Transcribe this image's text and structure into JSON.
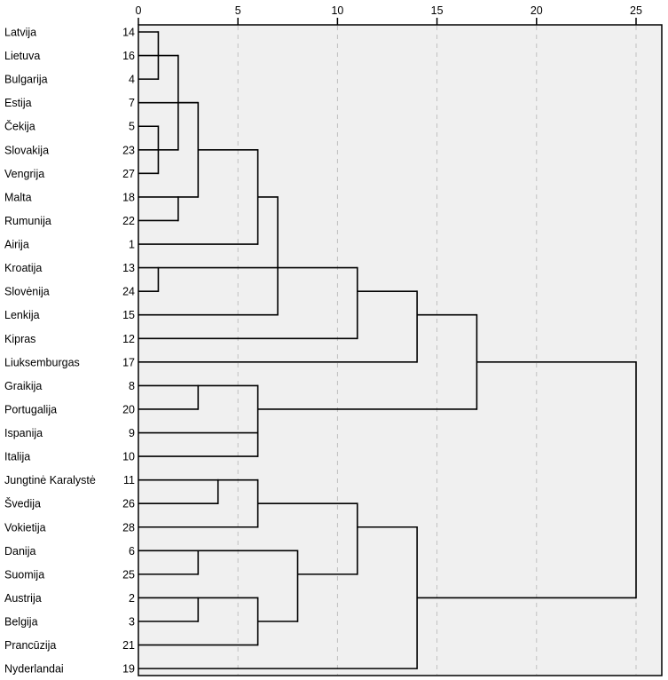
{
  "chart_data": {
    "type": "dendrogram",
    "title": "",
    "xlabel": "",
    "ylabel": "",
    "xlim": [
      0,
      25
    ],
    "xticks": [
      0,
      5,
      10,
      15,
      20,
      25
    ],
    "grid": true,
    "plot_background": "#f0f0f0",
    "line_color": "#000000",
    "leaves": [
      {
        "label": "Latvija",
        "case": "14"
      },
      {
        "label": "Lietuva",
        "case": "16"
      },
      {
        "label": "Bulgarija",
        "case": "4"
      },
      {
        "label": "Estija",
        "case": "7"
      },
      {
        "label": "Čekija",
        "case": "5"
      },
      {
        "label": "Slovakija",
        "case": "23"
      },
      {
        "label": "Vengrija",
        "case": "27"
      },
      {
        "label": "Malta",
        "case": "18"
      },
      {
        "label": "Rumunija",
        "case": "22"
      },
      {
        "label": "Airija",
        "case": "1"
      },
      {
        "label": "Kroatija",
        "case": "13"
      },
      {
        "label": "Slovėnija",
        "case": "24"
      },
      {
        "label": "Lenkija",
        "case": "15"
      },
      {
        "label": "Kipras",
        "case": "12"
      },
      {
        "label": "Liuksemburgas",
        "case": "17"
      },
      {
        "label": "Graikija",
        "case": "8"
      },
      {
        "label": "Portugalija",
        "case": "20"
      },
      {
        "label": "Ispanija",
        "case": "9"
      },
      {
        "label": "Italija",
        "case": "10"
      },
      {
        "label": "Jungtinė Karalystė",
        "case": "11"
      },
      {
        "label": "Švedija",
        "case": "26"
      },
      {
        "label": "Vokietija",
        "case": "28"
      },
      {
        "label": "Danija",
        "case": "6"
      },
      {
        "label": "Suomija",
        "case": "25"
      },
      {
        "label": "Austrija",
        "case": "2"
      },
      {
        "label": "Belgija",
        "case": "3"
      },
      {
        "label": "Prancūzija",
        "case": "21"
      },
      {
        "label": "Nyderlandai",
        "case": "19"
      }
    ],
    "merges": [
      {
        "children": [
          "Latvija",
          "Lietuva",
          "Bulgarija"
        ],
        "height": 1
      },
      {
        "children": [
          "Čekija",
          "Slovakija",
          "Vengrija"
        ],
        "height": 1
      },
      {
        "children": [
          0,
          1
        ],
        "height": 2
      },
      {
        "children": [
          "Malta",
          "Rumunija"
        ],
        "height": 2
      },
      {
        "children": [
          "Estija",
          2,
          3
        ],
        "height": 3
      },
      {
        "children": [
          4,
          "Airija"
        ],
        "height": 6
      },
      {
        "children": [
          "Kroatija",
          "Slovėnija"
        ],
        "height": 1
      },
      {
        "children": [
          6,
          5,
          "Lenkija"
        ],
        "height": 7
      },
      {
        "children": [
          7,
          "Kipras"
        ],
        "height": 11
      },
      {
        "children": [
          8,
          "Liuksemburgas"
        ],
        "height": 14
      },
      {
        "children": [
          "Graikija",
          "Portugalija"
        ],
        "height": 3
      },
      {
        "children": [
          10,
          "Ispanija",
          "Italija"
        ],
        "height": 6
      },
      {
        "children": [
          9,
          11
        ],
        "height": 17
      },
      {
        "children": [
          "Jungtinė Karalystė",
          "Švedija"
        ],
        "height": 4
      },
      {
        "children": [
          13,
          "Vokietija"
        ],
        "height": 6
      },
      {
        "children": [
          "Danija",
          "Suomija"
        ],
        "height": 3
      },
      {
        "children": [
          "Austrija",
          "Belgija"
        ],
        "height": 3
      },
      {
        "children": [
          16,
          "Prancūzija"
        ],
        "height": 6
      },
      {
        "children": [
          15,
          17
        ],
        "height": 8
      },
      {
        "children": [
          14,
          18
        ],
        "height": 11
      },
      {
        "children": [
          19,
          "Nyderlandai"
        ],
        "height": 14
      },
      {
        "children": [
          12,
          20
        ],
        "height": 25
      }
    ]
  }
}
